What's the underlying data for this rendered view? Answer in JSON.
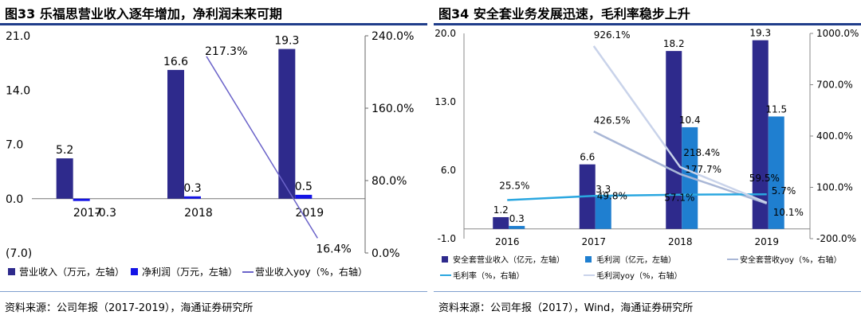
{
  "chart_data": [
    {
      "type": "bar",
      "figure_title": "图33 乐福思营业收入逐年增加，净利润未来可期",
      "categories": [
        "2017",
        "2018",
        "2019"
      ],
      "series": [
        {
          "name": "营业收入（万元，左轴）",
          "values": [
            5.2,
            16.6,
            19.3
          ],
          "data_labels": [
            "5.2",
            "16.6",
            "19.3"
          ],
          "color": "#2e2a8c",
          "kind": "bar",
          "axis": "left"
        },
        {
          "name": "净利润（万元，左轴）",
          "values": [
            -0.3,
            0.3,
            0.5
          ],
          "data_labels": [
            "-0.3",
            "0.3",
            "0.5"
          ],
          "color": "#1414e6",
          "kind": "bar",
          "axis": "left"
        },
        {
          "name": "营业收入yoy（%，右轴）",
          "values": [
            null,
            217.3,
            16.4
          ],
          "data_labels": [
            "",
            "217.3%",
            "16.4%"
          ],
          "color": "#6b63c9",
          "kind": "line",
          "axis": "right"
        }
      ],
      "y_left": {
        "ticks": [
          21.0,
          14.0,
          7.0,
          0.0,
          -7.0
        ],
        "tick_labels": [
          "21.0",
          "14.0",
          "7.0",
          "0.0",
          "(7.0)"
        ],
        "ylim": [
          -7,
          21
        ]
      },
      "y_right": {
        "ticks": [
          240,
          160,
          80,
          0
        ],
        "tick_labels": [
          "240.0%",
          "160.0%",
          "80.0%",
          "0.0%"
        ],
        "ylim": [
          0,
          240
        ]
      },
      "legend_position": "bottom",
      "source": "资料来源：公司年报（2017-2019），海通证券研究所"
    },
    {
      "type": "bar",
      "figure_title": "图34 安全套业务发展迅速，毛利率稳步上升",
      "categories": [
        "2016",
        "2017",
        "2018",
        "2019"
      ],
      "series": [
        {
          "name": "安全套营业收入（亿元，左轴）",
          "values": [
            1.2,
            6.6,
            18.2,
            19.3
          ],
          "data_labels": [
            "1.2",
            "6.6",
            "18.2",
            "19.3"
          ],
          "color": "#2e2a8c",
          "kind": "bar",
          "axis": "left"
        },
        {
          "name": "毛利润（亿元，左轴）",
          "values": [
            0.3,
            3.3,
            10.4,
            11.5
          ],
          "data_labels": [
            "0.3",
            "3.3",
            "10.4",
            "11.5"
          ],
          "color": "#1f7fd0",
          "kind": "bar",
          "axis": "left"
        },
        {
          "name": "安全套营收yoy（%，右轴）",
          "values": [
            null,
            426.5,
            177.7,
            5.7
          ],
          "data_labels": [
            "",
            "426.5%",
            "177.7%",
            "5.7%"
          ],
          "color": "#a9b7d6",
          "kind": "line",
          "axis": "right"
        },
        {
          "name": "毛利率（%，右轴）",
          "values": [
            25.5,
            49.8,
            57.1,
            59.5
          ],
          "data_labels": [
            "25.5%",
            "49.8%",
            "57.1%",
            "59.5%"
          ],
          "color": "#2aa7e0",
          "kind": "line",
          "axis": "right"
        },
        {
          "name": "毛利润yoy（%，右轴）",
          "values": [
            null,
            926.1,
            218.4,
            10.1
          ],
          "data_labels": [
            "",
            "926.1%",
            "218.4%",
            "10.1%"
          ],
          "color": "#c9d3ea",
          "kind": "line",
          "axis": "right"
        }
      ],
      "y_left": {
        "ticks": [
          20.0,
          13.0,
          6.0,
          -1.0
        ],
        "tick_labels": [
          "20.0",
          "13.0",
          "6.0",
          "-1.0"
        ],
        "ylim": [
          -1,
          20
        ]
      },
      "y_right": {
        "ticks": [
          1000,
          700,
          400,
          100,
          -200
        ],
        "tick_labels": [
          "1000.0%",
          "700.0%",
          "400.0%",
          "100.0%",
          "-200.0%"
        ],
        "ylim": [
          -200,
          1000
        ]
      },
      "legend_position": "bottom",
      "source": "资料来源：公司年报（2017），Wind，海通证券研究所"
    }
  ]
}
